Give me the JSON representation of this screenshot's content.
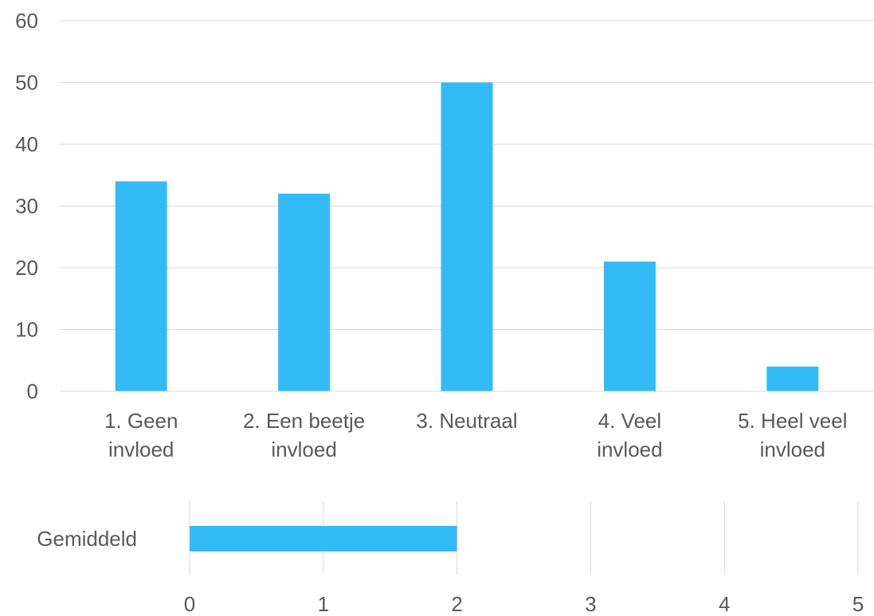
{
  "colors": {
    "bar": "#33bbf8",
    "grid": "#d9d9d9",
    "text": "#595959"
  },
  "chart_data": [
    {
      "type": "bar",
      "categories": [
        [
          "1. Geen",
          "invloed"
        ],
        [
          "2. Een beetje",
          "invloed"
        ],
        [
          "3. Neutraal"
        ],
        [
          "4. Veel",
          "invloed"
        ],
        [
          "5. Heel veel",
          "invloed"
        ]
      ],
      "values": [
        34,
        32,
        50,
        21,
        4
      ],
      "ylim": [
        0,
        60
      ],
      "yticks": [
        "0",
        "10",
        "20",
        "30",
        "40",
        "50",
        "60"
      ],
      "grid": true
    },
    {
      "type": "bar",
      "orientation": "horizontal",
      "categories": [
        "Gemiddeld"
      ],
      "values": [
        2
      ],
      "xlim": [
        0,
        5
      ],
      "xticks": [
        "0",
        "1",
        "2",
        "3",
        "4",
        "5"
      ],
      "grid": true
    }
  ]
}
